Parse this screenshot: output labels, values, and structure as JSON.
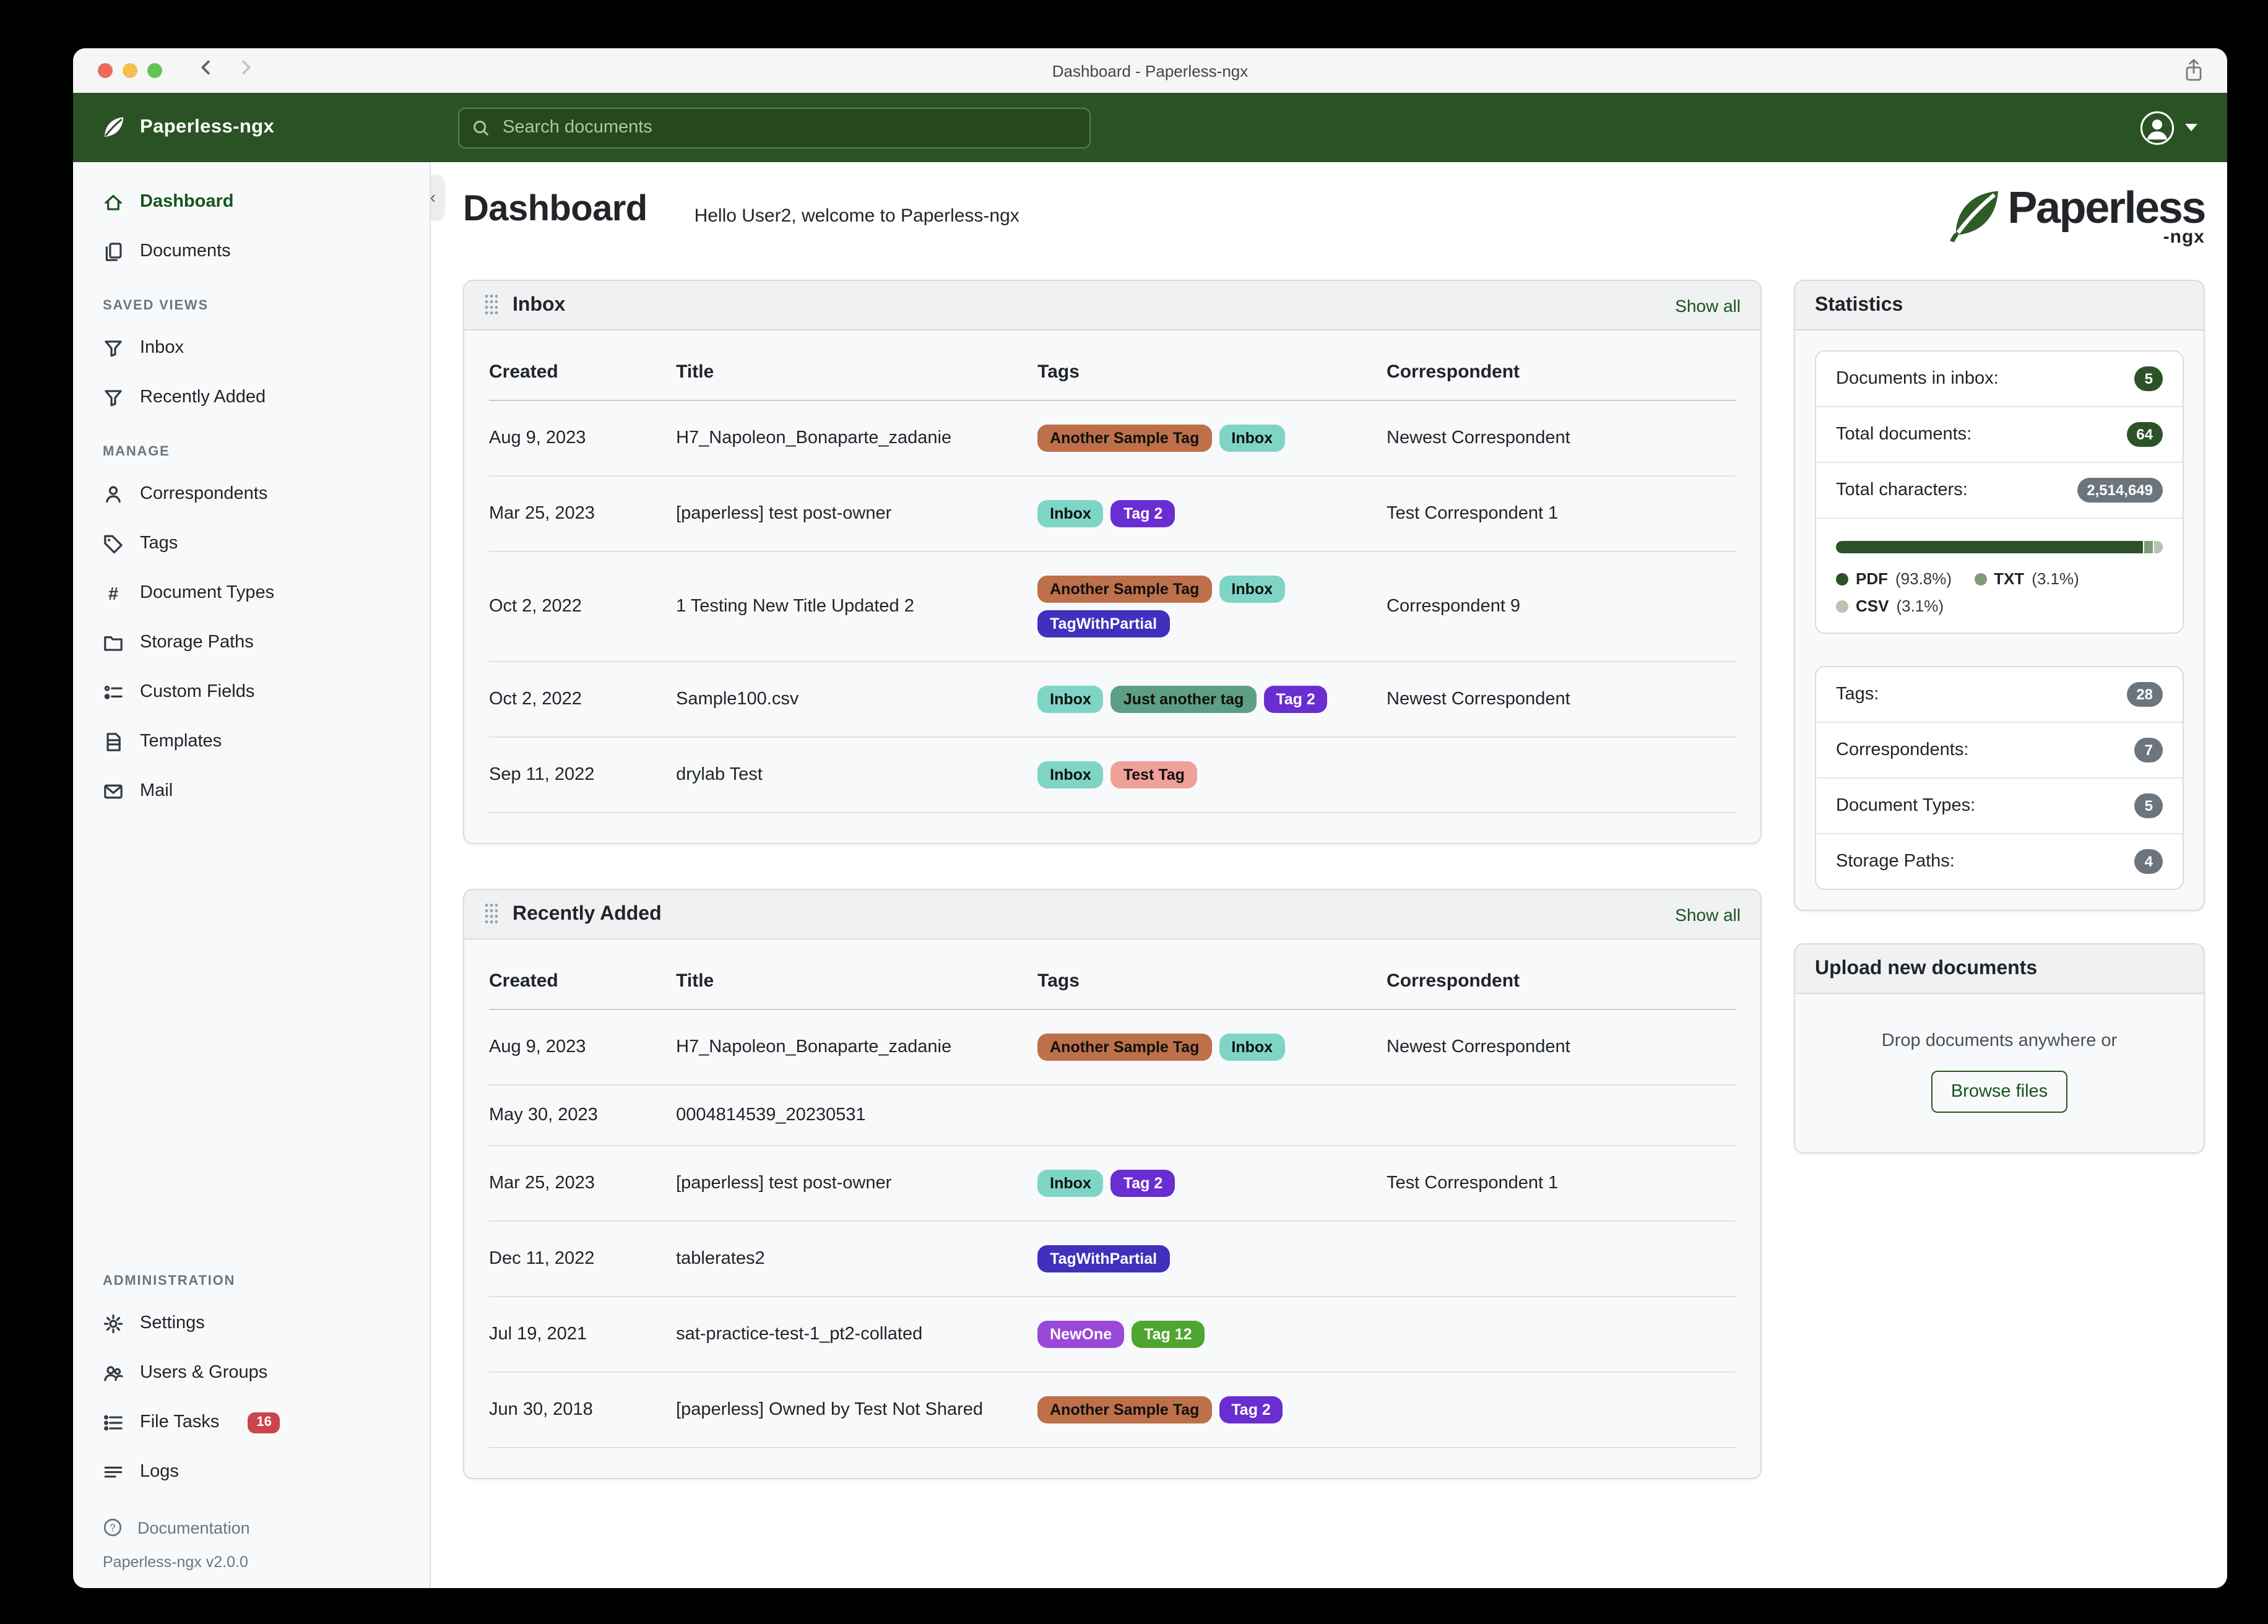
{
  "window": {
    "title": "Dashboard - Paperless-ngx"
  },
  "appbar": {
    "brand": "Paperless-ngx",
    "search": {
      "placeholder": "Search documents"
    }
  },
  "sidebar": {
    "sections": [
      {
        "heading": "",
        "push_down": false,
        "items": [
          {
            "label": "Dashboard",
            "icon": "home",
            "active": true
          },
          {
            "label": "Documents",
            "icon": "documents",
            "active": false
          }
        ]
      },
      {
        "heading": "SAVED VIEWS",
        "push_down": false,
        "items": [
          {
            "label": "Inbox",
            "icon": "funnel",
            "active": false
          },
          {
            "label": "Recently Added",
            "icon": "funnel",
            "active": false
          }
        ]
      },
      {
        "heading": "MANAGE",
        "push_down": false,
        "items": [
          {
            "label": "Correspondents",
            "icon": "person",
            "active": false
          },
          {
            "label": "Tags",
            "icon": "tag",
            "active": false
          },
          {
            "label": "Document Types",
            "icon": "hash",
            "active": false
          },
          {
            "label": "Storage Paths",
            "icon": "folder",
            "active": false
          },
          {
            "label": "Custom Fields",
            "icon": "fields",
            "active": false
          },
          {
            "label": "Templates",
            "icon": "template",
            "active": false
          },
          {
            "label": "Mail",
            "icon": "mail",
            "active": false
          }
        ]
      },
      {
        "heading": "ADMINISTRATION",
        "push_down": true,
        "items": [
          {
            "label": "Settings",
            "icon": "gear",
            "active": false
          },
          {
            "label": "Users & Groups",
            "icon": "users",
            "active": false
          },
          {
            "label": "File Tasks",
            "icon": "tasklist",
            "active": false,
            "badge": "16"
          },
          {
            "label": "Logs",
            "icon": "lines",
            "active": false
          }
        ]
      }
    ],
    "footer": {
      "documentation": "Documentation",
      "version": "Paperless-ngx v2.0.0"
    }
  },
  "page": {
    "title": "Dashboard",
    "subtitle": "Hello User2, welcome to Paperless-ngx",
    "logo": {
      "word": "Paperless",
      "suffix": "-ngx"
    }
  },
  "tag_palette": {
    "Another Sample Tag": {
      "bg": "#bd7049",
      "fg": "#101010"
    },
    "Inbox": {
      "bg": "#7ed5c5",
      "fg": "#101010"
    },
    "Tag 2": {
      "bg": "#6a2dd1",
      "fg": "#ffffff"
    },
    "TagWithPartial": {
      "bg": "#4030bd",
      "fg": "#ffffff"
    },
    "Just another tag": {
      "bg": "#5c9f84",
      "fg": "#101010"
    },
    "Test Tag": {
      "bg": "#efa099",
      "fg": "#101010"
    },
    "NewOne": {
      "bg": "#9a48d8",
      "fg": "#ffffff"
    },
    "Tag 12": {
      "bg": "#4fa52f",
      "fg": "#ffffff"
    }
  },
  "widgets": [
    {
      "title": "Inbox",
      "show_all": "Show all",
      "columns": [
        "Created",
        "Title",
        "Tags",
        "Correspondent"
      ],
      "rows": [
        {
          "created": "Aug 9, 2023",
          "title": "H7_Napoleon_Bonaparte_zadanie",
          "tags": [
            "Another Sample Tag",
            "Inbox"
          ],
          "correspondent": "Newest Correspondent"
        },
        {
          "created": "Mar 25, 2023",
          "title": "[paperless] test post-owner",
          "tags": [
            "Inbox",
            "Tag 2"
          ],
          "correspondent": "Test Correspondent 1"
        },
        {
          "created": "Oct 2, 2022",
          "title": "1 Testing New Title Updated 2",
          "tags": [
            "Another Sample Tag",
            "Inbox",
            "TagWithPartial"
          ],
          "correspondent": "Correspondent 9"
        },
        {
          "created": "Oct 2, 2022",
          "title": "Sample100.csv",
          "tags": [
            "Inbox",
            "Just another tag",
            "Tag 2"
          ],
          "correspondent": "Newest Correspondent"
        },
        {
          "created": "Sep 11, 2022",
          "title": "drylab Test",
          "tags": [
            "Inbox",
            "Test Tag"
          ],
          "correspondent": ""
        }
      ]
    },
    {
      "title": "Recently Added",
      "show_all": "Show all",
      "columns": [
        "Created",
        "Title",
        "Tags",
        "Correspondent"
      ],
      "rows": [
        {
          "created": "Aug 9, 2023",
          "title": "H7_Napoleon_Bonaparte_zadanie",
          "tags": [
            "Another Sample Tag",
            "Inbox"
          ],
          "correspondent": "Newest Correspondent"
        },
        {
          "created": "May 30, 2023",
          "title": "0004814539_20230531",
          "tags": [],
          "correspondent": ""
        },
        {
          "created": "Mar 25, 2023",
          "title": "[paperless] test post-owner",
          "tags": [
            "Inbox",
            "Tag 2"
          ],
          "correspondent": "Test Correspondent 1"
        },
        {
          "created": "Dec 11, 2022",
          "title": "tablerates2",
          "tags": [
            "TagWithPartial"
          ],
          "correspondent": ""
        },
        {
          "created": "Jul 19, 2021",
          "title": "sat-practice-test-1_pt2-collated",
          "tags": [
            "NewOne",
            "Tag 12"
          ],
          "correspondent": ""
        },
        {
          "created": "Jun 30, 2018",
          "title": "[paperless] Owned by Test Not Shared",
          "tags": [
            "Another Sample Tag",
            "Tag 2"
          ],
          "correspondent": ""
        }
      ]
    }
  ],
  "statistics": {
    "title": "Statistics",
    "counts": [
      {
        "label": "Documents in inbox:",
        "value": "5",
        "badge": "green"
      },
      {
        "label": "Total documents:",
        "value": "64",
        "badge": "green"
      },
      {
        "label": "Total characters:",
        "value": "2,514,649",
        "badge": "gray"
      }
    ],
    "file_types": [
      {
        "name": "PDF",
        "pct_label": "(93.8%)",
        "width": 93.8,
        "color": "#2c5327"
      },
      {
        "name": "TXT",
        "pct_label": "(3.1%)",
        "width": 3.1,
        "color": "#7e9c78"
      },
      {
        "name": "CSV",
        "pct_label": "(3.1%)",
        "width": 3.1,
        "color": "#b7c4b1"
      }
    ],
    "metadata": [
      {
        "label": "Tags:",
        "value": "28",
        "badge": "gray"
      },
      {
        "label": "Correspondents:",
        "value": "7",
        "badge": "gray"
      },
      {
        "label": "Document Types:",
        "value": "5",
        "badge": "gray"
      },
      {
        "label": "Storage Paths:",
        "value": "4",
        "badge": "gray"
      }
    ]
  },
  "upload": {
    "title": "Upload new documents",
    "hint": "Drop documents anywhere or",
    "button": "Browse files"
  },
  "colors": {
    "brand_green": "#2b5224",
    "link_green": "#17541f",
    "badge_green": "#2c5327",
    "badge_gray": "#6c757d",
    "file_tasks_badge": "#cb444a"
  }
}
